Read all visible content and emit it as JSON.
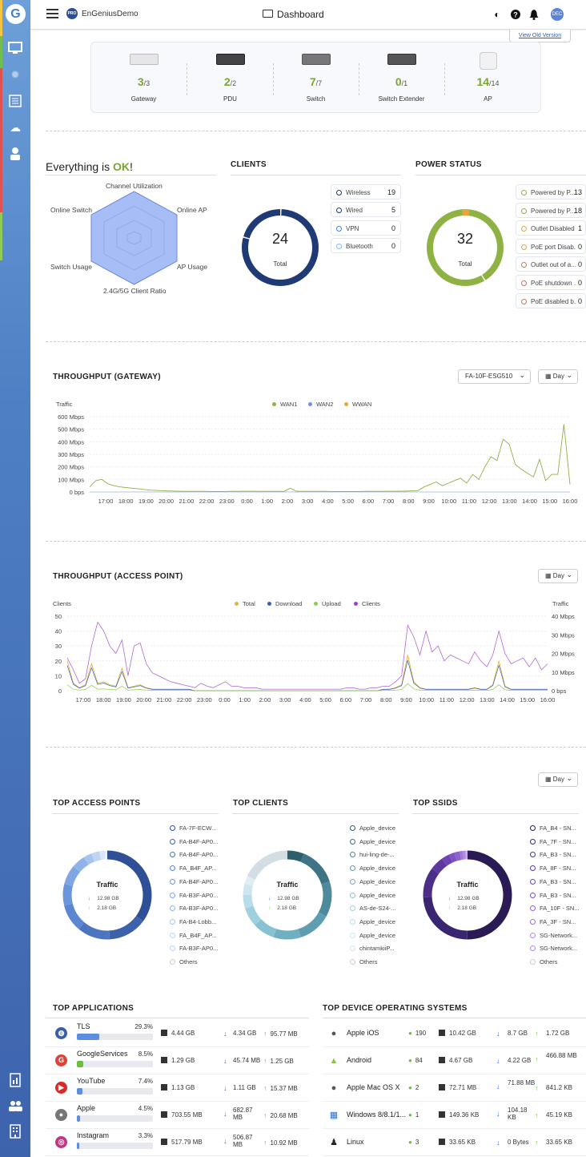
{
  "app": {
    "org_name": "EnGeniusDemo",
    "pro_badge": "PRO",
    "logo_letter": "G",
    "page_title": "Dashboard",
    "avatar": "DEC",
    "old_version": "View Old Version"
  },
  "devices": [
    {
      "name": "Gateway",
      "online": "3",
      "total": "/3"
    },
    {
      "name": "PDU",
      "online": "2",
      "total": "/2"
    },
    {
      "name": "Switch",
      "online": "7",
      "total": "/7"
    },
    {
      "name": "Switch Extender",
      "online": "0",
      "total": "/1"
    },
    {
      "name": "AP",
      "online": "14",
      "total": "/14"
    }
  ],
  "health": {
    "prefix": "Everything is ",
    "status": "OK",
    "suffix": "!",
    "radar_labels": {
      "top": "Channel Utilization",
      "top_left": "Online Switch",
      "top_right": "Online AP",
      "bottom_left": "Switch Usage",
      "bottom_right": "AP Usage",
      "bottom": "2.4G/5G Client Ratio"
    }
  },
  "clients": {
    "title": "CLIENTS",
    "total": "24",
    "total_label": "Total",
    "legend": [
      {
        "label": "Wireless",
        "value": "19"
      },
      {
        "label": "Wired",
        "value": "5"
      },
      {
        "label": "VPN",
        "value": "0"
      },
      {
        "label": "Bluetooth",
        "value": "0"
      }
    ]
  },
  "power": {
    "title": "POWER STATUS",
    "total": "32",
    "total_label": "Total",
    "legend": [
      {
        "label": "Powered by P...",
        "value": "13",
        "color": "#8fb244"
      },
      {
        "label": "Powered by P...",
        "value": "18",
        "color": "#8fb244"
      },
      {
        "label": "Outlet Disabled",
        "value": "1",
        "color": "#e2a63a"
      },
      {
        "label": "PoE port Disab...",
        "value": "0",
        "color": "#e2a63a"
      },
      {
        "label": "Outlet out of a...",
        "value": "0",
        "color": "#d9735a"
      },
      {
        "label": "PoE shutdown ...",
        "value": "0",
        "color": "#d9735a"
      },
      {
        "label": "PoE disabled b...",
        "value": "0",
        "color": "#d9735a"
      }
    ]
  },
  "gw_chart": {
    "title": "THROUGHPUT (GATEWAY)",
    "device_select": "FA-10F-ESG510",
    "range_select": "Day",
    "ylabel": "Traffic",
    "legend": [
      {
        "name": "WAN1",
        "color": "#8fb244"
      },
      {
        "name": "WAN2",
        "color": "#6f8fe0"
      },
      {
        "name": "WWAN",
        "color": "#e2a63a"
      }
    ],
    "yticks": [
      "600 Mbps",
      "500 Mbps",
      "400 Mbps",
      "300 Mbps",
      "200 Mbps",
      "100 Mbps",
      "0 bps"
    ],
    "xticks": [
      "17:00",
      "18:00",
      "19:00",
      "20:00",
      "21:00",
      "22:00",
      "23:00",
      "0:00",
      "1:00",
      "2:00",
      "3:00",
      "4:00",
      "5:00",
      "6:00",
      "7:00",
      "8:00",
      "9:00",
      "10:00",
      "11:00",
      "12:00",
      "13:00",
      "14:00",
      "15:00",
      "16:00"
    ]
  },
  "ap_chart": {
    "title": "THROUGHPUT (ACCESS POINT)",
    "range_select": "Day",
    "ylabel_left": "Clients",
    "ylabel_right": "Traffic",
    "legend": [
      {
        "name": "Total",
        "color": "#e2b63a"
      },
      {
        "name": "Download",
        "color": "#3e5fae"
      },
      {
        "name": "Upload",
        "color": "#8fcc55"
      },
      {
        "name": "Clients",
        "color": "#9b3fcf"
      }
    ],
    "yticks_left": [
      "50",
      "40",
      "30",
      "20",
      "10",
      "0"
    ],
    "yticks_right": [
      "40 Mbps",
      "30 Mbps",
      "20 Mbps",
      "10 Mbps",
      "0 bps"
    ],
    "xticks": [
      "17:00",
      "18:00",
      "19:00",
      "20:00",
      "21:00",
      "22:00",
      "23:00",
      "0:00",
      "1:00",
      "2:00",
      "3:00",
      "4:00",
      "5:00",
      "6:00",
      "7:00",
      "8:00",
      "9:00",
      "10:00",
      "11:00",
      "12:00",
      "13:00",
      "14:00",
      "15:00",
      "16:00"
    ]
  },
  "tops": {
    "range_select": "Day",
    "panels": [
      {
        "title": "TOP ACCESS POINTS",
        "traffic": "Traffic",
        "down": "12.98 GB",
        "up": "2.18 GB",
        "items": [
          "FA-7F-ECW...",
          "FA-B4F-AP0...",
          "FA-B4F-AP0...",
          "FA_B4F_AP...",
          "FA-B4F-AP0...",
          "FA-B3F-AP0...",
          "FA-B3F-AP0...",
          "FA-B4-Lobb...",
          "FA_B4F_AP...",
          "FA-B3F-AP0...",
          "Others"
        ]
      },
      {
        "title": "TOP CLIENTS",
        "traffic": "Traffic",
        "down": "12.98 GB",
        "up": "2.18 GB",
        "items": [
          "Apple_device",
          "Apple_device",
          "hui-ling-de-...",
          "Apple_device",
          "Apple_device",
          "Apple_device",
          "AS-de-S24-...",
          "Apple_device",
          "Apple_device",
          "chintamkiiP...",
          "Others"
        ]
      },
      {
        "title": "TOP SSIDS",
        "traffic": "Traffic",
        "down": "12.98 GB",
        "up": "2.18 GB",
        "items": [
          "FA_B4 - SN...",
          "FA_7F - SN...",
          "FA_B3 - SN...",
          "FA_8F - SN...",
          "FA_B3 - SN...",
          "FA_B3 - SN...",
          "FA_10F - SN...",
          "FA_3F - SN...",
          "SG-Network...",
          "SG-Network...",
          "Others"
        ]
      }
    ]
  },
  "apps": {
    "title": "TOP APPLICATIONS",
    "rows": [
      {
        "name": "TLS",
        "pct": "29.3%",
        "fill": 0.293,
        "total": "4.44 GB",
        "down": "4.34 GB",
        "up": "95.77 MB",
        "icon": "globe-icon",
        "glyph": "◍",
        "color": "#3b5ea8"
      },
      {
        "name": "GoogleServices",
        "pct": "8.5%",
        "fill": 0.085,
        "total": "1.29 GB",
        "down": "45.74 MB",
        "up": "1.25 GB",
        "icon": "google-icon",
        "glyph": "G",
        "color": "#db4437"
      },
      {
        "name": "YouTube",
        "pct": "7.4%",
        "fill": 0.074,
        "total": "1.13 GB",
        "down": "1.11 GB",
        "up": "15.37 MB",
        "icon": "youtube-icon",
        "glyph": "▶",
        "color": "#d62b26"
      },
      {
        "name": "Apple",
        "pct": "4.5%",
        "fill": 0.045,
        "total": "703.55 MB",
        "down": "682.87 MB",
        "up": "20.68 MB",
        "icon": "apple-icon",
        "glyph": "●",
        "color": "#777"
      },
      {
        "name": "Instagram",
        "pct": "3.3%",
        "fill": 0.033,
        "total": "517.79 MB",
        "down": "506.87 MB",
        "up": "10.92 MB",
        "icon": "instagram-icon",
        "glyph": "◎",
        "color": "#c13584"
      }
    ]
  },
  "os": {
    "title": "TOP DEVICE OPERATING SYSTEMS",
    "rows": [
      {
        "name": "Apple iOS",
        "users": "190",
        "total": "10.42 GB",
        "down": "8.7 GB",
        "up": "1.72 GB",
        "icon": "apple-icon",
        "glyph": "●",
        "color": "#555"
      },
      {
        "name": "Android",
        "users": "84",
        "total": "4.67 GB",
        "down": "4.22 GB",
        "up": "466.88 MB",
        "icon": "android-icon",
        "glyph": "▲",
        "color": "#8bc34a"
      },
      {
        "name": "Apple Mac OS X",
        "users": "2",
        "total": "72.71 MB",
        "down": "71.88 MB",
        "up": "841.2 KB",
        "icon": "apple-icon",
        "glyph": "●",
        "color": "#555"
      },
      {
        "name": "Windows 8/8.1/1...",
        "users": "1",
        "total": "149.36 KB",
        "down": "104.18 KB",
        "up": "45.19 KB",
        "icon": "windows-icon",
        "glyph": "▦",
        "color": "#2a6fdb"
      },
      {
        "name": "Linux",
        "users": "3",
        "total": "33.65 KB",
        "down": "0 Bytes",
        "up": "33.65 KB",
        "icon": "linux-icon",
        "glyph": "♟",
        "color": "#222"
      }
    ]
  }
}
